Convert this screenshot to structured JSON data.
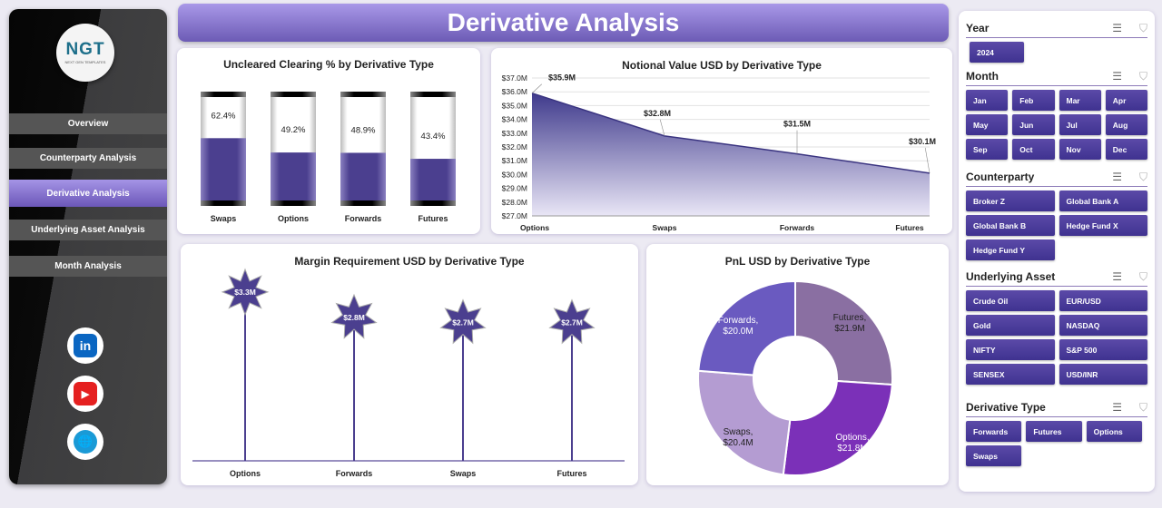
{
  "title": "Derivative Analysis",
  "logo": {
    "text": "NGT",
    "sub": "NEXT GEN TEMPLATES"
  },
  "nav": [
    {
      "label": "Overview"
    },
    {
      "label": "Counterparty Analysis"
    },
    {
      "label": "Derivative Analysis",
      "active": true
    },
    {
      "label": "Underlying Asset Analysis"
    },
    {
      "label": "Month Analysis"
    }
  ],
  "social": [
    {
      "icon": "linkedin-icon",
      "glyph": "in",
      "color": "#0a66c2"
    },
    {
      "icon": "youtube-icon",
      "glyph": "▶",
      "color": "#e52020"
    },
    {
      "icon": "globe-icon",
      "glyph": "🌐",
      "color": "#1a9ad6"
    }
  ],
  "colors": {
    "accent": "#5b4aa8",
    "fill": "#4b3f8f"
  },
  "chart_data": [
    {
      "type": "bar",
      "title": "Uncleared Clearing % by Derivative Type",
      "categories": [
        "Swaps",
        "Options",
        "Forwards",
        "Futures"
      ],
      "values": [
        62.4,
        49.2,
        48.9,
        43.4
      ],
      "labels": [
        "62.4%",
        "49.2%",
        "48.9%",
        "43.4%"
      ],
      "ylim": [
        0,
        100
      ]
    },
    {
      "type": "area",
      "title": "Notional Value USD by Derivative Type",
      "categories": [
        "Options",
        "Swaps",
        "Forwards",
        "Futures"
      ],
      "values": [
        35.9,
        32.8,
        31.5,
        30.1
      ],
      "labels": [
        "$35.9M",
        "$32.8M",
        "$31.5M",
        "$30.1M"
      ],
      "ylim": [
        27,
        37
      ],
      "yticks": [
        "$27.0M",
        "$28.0M",
        "$29.0M",
        "$30.0M",
        "$31.0M",
        "$32.0M",
        "$33.0M",
        "$34.0M",
        "$35.0M",
        "$36.0M",
        "$37.0M"
      ],
      "grid": true
    },
    {
      "type": "bar",
      "title": "Margin Requirement USD by Derivative Type",
      "categories": [
        "Options",
        "Forwards",
        "Swaps",
        "Futures"
      ],
      "values": [
        3.3,
        2.8,
        2.7,
        2.7
      ],
      "labels": [
        "$3.3M",
        "$2.8M",
        "$2.7M",
        "$2.7M"
      ]
    },
    {
      "type": "pie",
      "title": "PnL USD by Derivative Type",
      "categories": [
        "Futures",
        "Options",
        "Swaps",
        "Forwards"
      ],
      "values": [
        21.9,
        21.8,
        20.4,
        20.0
      ],
      "labels": [
        "Futures,",
        "Options,",
        "Swaps,",
        "Forwards,"
      ],
      "value_labels": [
        "$21.9M",
        "$21.8M",
        "$20.4M",
        "$20.0M"
      ],
      "colors": [
        "#8a6fa2",
        "#7b30b8",
        "#b49cd2",
        "#6a5ac0"
      ]
    }
  ],
  "filters": {
    "year": {
      "title": "Year",
      "items": [
        "2024"
      ]
    },
    "month": {
      "title": "Month",
      "items": [
        "Jan",
        "Feb",
        "Mar",
        "Apr",
        "May",
        "Jun",
        "Jul",
        "Aug",
        "Sep",
        "Oct",
        "Nov",
        "Dec"
      ]
    },
    "counterparty": {
      "title": "Counterparty",
      "items": [
        "Broker Z",
        "Global Bank A",
        "Global Bank B",
        "Hedge Fund X",
        "Hedge Fund Y"
      ]
    },
    "asset": {
      "title": "Underlying Asset",
      "items": [
        "Crude Oil",
        "EUR/USD",
        "Gold",
        "NASDAQ",
        "NIFTY",
        "S&P 500",
        "SENSEX",
        "USD/INR"
      ]
    },
    "dtype": {
      "title": "Derivative Type",
      "items": [
        "Forwards",
        "Futures",
        "Options",
        "Swaps"
      ]
    }
  }
}
